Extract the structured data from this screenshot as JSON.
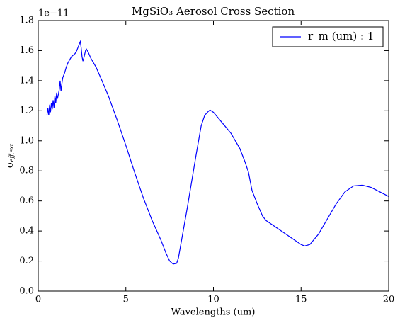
{
  "chart_data": {
    "type": "line",
    "title": "MgSiO₃ Aerosol Cross Section",
    "x_label": "Wavelengths (um)",
    "y_label": {
      "symbol": "σ",
      "subscript": "eff,ext"
    },
    "y_offset": "1e−11",
    "x": [
      0.5,
      0.55,
      0.6,
      0.65,
      0.7,
      0.75,
      0.8,
      0.85,
      0.9,
      0.95,
      1.0,
      1.05,
      1.1,
      1.2,
      1.25,
      1.3,
      1.35,
      1.4,
      1.5,
      1.6,
      1.7,
      1.8,
      1.9,
      2.0,
      2.1,
      2.2,
      2.3,
      2.4,
      2.45,
      2.5,
      2.55,
      2.6,
      2.7,
      2.75,
      2.85,
      3.0,
      3.3,
      3.6,
      4.0,
      4.5,
      5.0,
      5.5,
      6.0,
      6.5,
      7.0,
      7.3,
      7.5,
      7.7,
      7.9,
      8.0,
      8.5,
      9.0,
      9.3,
      9.5,
      9.7,
      9.8,
      10.0,
      10.5,
      11.0,
      11.5,
      11.8,
      12.0,
      12.2,
      12.5,
      12.8,
      13.0,
      13.5,
      14.0,
      14.5,
      15.0,
      15.2,
      15.5,
      16.0,
      16.5,
      17.0,
      17.5,
      18.0,
      18.5,
      19.0,
      19.5,
      20.0
    ],
    "series": [
      {
        "name": "r_m (um) : 1",
        "color": "#0000ff",
        "values": [
          1.17,
          1.22,
          1.17,
          1.24,
          1.19,
          1.25,
          1.21,
          1.27,
          1.22,
          1.3,
          1.25,
          1.32,
          1.28,
          1.34,
          1.4,
          1.33,
          1.38,
          1.42,
          1.45,
          1.49,
          1.52,
          1.54,
          1.56,
          1.57,
          1.58,
          1.6,
          1.63,
          1.66,
          1.62,
          1.56,
          1.53,
          1.55,
          1.6,
          1.61,
          1.59,
          1.55,
          1.49,
          1.41,
          1.3,
          1.14,
          0.97,
          0.79,
          0.62,
          0.47,
          0.34,
          0.25,
          0.2,
          0.18,
          0.185,
          0.22,
          0.55,
          0.9,
          1.1,
          1.17,
          1.195,
          1.205,
          1.19,
          1.12,
          1.05,
          0.95,
          0.86,
          0.79,
          0.67,
          0.58,
          0.5,
          0.47,
          0.43,
          0.39,
          0.35,
          0.31,
          0.3,
          0.31,
          0.38,
          0.48,
          0.58,
          0.66,
          0.7,
          0.705,
          0.69,
          0.66,
          0.63
        ]
      }
    ],
    "xlim": [
      0,
      20
    ],
    "xticks": [
      0,
      5,
      10,
      15,
      20
    ],
    "ylim": [
      0,
      1.8
    ],
    "yticks": [
      {
        "value": 0,
        "label": "0.0"
      },
      0.2,
      0.4,
      0.6,
      0.8,
      {
        "value": 1,
        "label": "1.0"
      },
      1.2,
      1.4,
      1.6,
      1.8
    ],
    "legend": "upper right",
    "grid": false
  }
}
